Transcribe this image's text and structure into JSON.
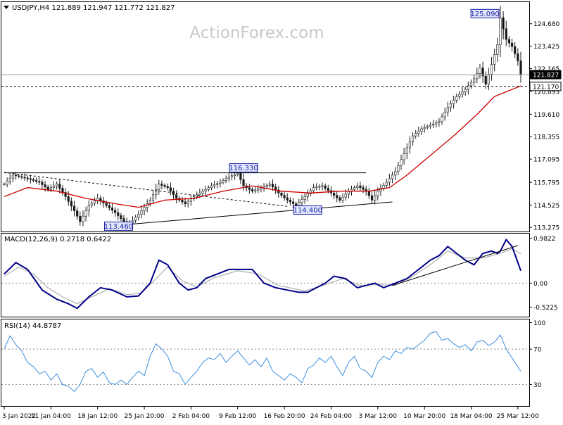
{
  "colors": {
    "candle": "#1a1a1a",
    "ma": "#cc0000",
    "macd": "#00008b",
    "signal": "#b0b0b0",
    "rsi": "#3d8fe0",
    "price_tag_bg": "#000000",
    "price_tag_fg": "#ffffff",
    "label_box_border": "#1f1fa0",
    "label_box_bg": "#dfe8ff",
    "watermark": "#c8c8c8"
  },
  "watermark": "ActionForex.com",
  "chart_data": [
    {
      "type": "candlestick",
      "title": "USDJPY,H4  121.889 121.947 121.772 121.827",
      "ylim": [
        113.2,
        125.3
      ],
      "y_ticks": [
        "124.680",
        "123.425",
        "122.165",
        "120.895",
        "119.610",
        "118.355",
        "117.095",
        "115.795",
        "114.525",
        "113.275"
      ],
      "y_tick_values": [
        124.68,
        123.425,
        122.165,
        120.895,
        119.61,
        118.355,
        117.095,
        115.795,
        114.525,
        113.275
      ],
      "last_price": "121.827",
      "last_price_value": 121.827,
      "dashed_level": "121.170",
      "dashed_level_value": 121.17,
      "annotations": [
        {
          "text": "125.090",
          "value": 125.09
        },
        {
          "text": "116.330",
          "value": 116.33
        },
        {
          "text": "114.400",
          "value": 114.4
        },
        {
          "text": "113.460",
          "value": 113.46
        }
      ],
      "price_path": [
        [
          0,
          115.7
        ],
        [
          3,
          116.2
        ],
        [
          8,
          116.0
        ],
        [
          12,
          115.8
        ],
        [
          15,
          115.4
        ],
        [
          18,
          115.7
        ],
        [
          21,
          115.0
        ],
        [
          24,
          114.2
        ],
        [
          26,
          113.6
        ],
        [
          29,
          114.5
        ],
        [
          32,
          114.9
        ],
        [
          35,
          114.5
        ],
        [
          38,
          114.1
        ],
        [
          41,
          113.6
        ],
        [
          43,
          113.5
        ],
        [
          46,
          114.0
        ],
        [
          50,
          114.8
        ],
        [
          53,
          115.7
        ],
        [
          56,
          115.5
        ],
        [
          59,
          114.9
        ],
        [
          62,
          114.6
        ],
        [
          65,
          115.0
        ],
        [
          68,
          115.3
        ],
        [
          71,
          115.6
        ],
        [
          74,
          115.8
        ],
        [
          77,
          116.1
        ],
        [
          80,
          116.3
        ],
        [
          82,
          115.6
        ],
        [
          85,
          115.3
        ],
        [
          88,
          115.5
        ],
        [
          91,
          115.7
        ],
        [
          94,
          115.2
        ],
        [
          97,
          114.8
        ],
        [
          100,
          114.5
        ],
        [
          103,
          115.0
        ],
        [
          106,
          115.5
        ],
        [
          109,
          115.6
        ],
        [
          112,
          115.2
        ],
        [
          115,
          114.8
        ],
        [
          118,
          115.3
        ],
        [
          121,
          115.6
        ],
        [
          124,
          115.3
        ],
        [
          126,
          114.8
        ],
        [
          128,
          115.3
        ],
        [
          131,
          115.8
        ],
        [
          134,
          116.4
        ],
        [
          137,
          117.4
        ],
        [
          140,
          118.4
        ],
        [
          143,
          118.8
        ],
        [
          146,
          119.0
        ],
        [
          149,
          119.2
        ],
        [
          152,
          120.0
        ],
        [
          155,
          120.6
        ],
        [
          158,
          121.0
        ],
        [
          161,
          121.6
        ],
        [
          163,
          122.2
        ],
        [
          165,
          121.3
        ],
        [
          167,
          122.4
        ],
        [
          169,
          123.5
        ],
        [
          170,
          125.0
        ],
        [
          172,
          123.8
        ],
        [
          174,
          123.4
        ],
        [
          176,
          122.6
        ],
        [
          177,
          121.827
        ]
      ],
      "ma_path": [
        [
          0,
          115.0
        ],
        [
          8,
          115.5
        ],
        [
          18,
          115.3
        ],
        [
          28,
          114.9
        ],
        [
          38,
          114.6
        ],
        [
          46,
          114.4
        ],
        [
          55,
          114.8
        ],
        [
          65,
          114.9
        ],
        [
          75,
          115.3
        ],
        [
          85,
          115.6
        ],
        [
          95,
          115.3
        ],
        [
          105,
          115.2
        ],
        [
          115,
          115.3
        ],
        [
          125,
          115.3
        ],
        [
          132,
          115.5
        ],
        [
          138,
          116.2
        ],
        [
          146,
          117.3
        ],
        [
          154,
          118.4
        ],
        [
          162,
          119.6
        ],
        [
          168,
          120.6
        ],
        [
          174,
          121.0
        ],
        [
          177,
          121.2
        ]
      ],
      "trendlines": [
        {
          "from": [
            0,
            116.35
          ],
          "to": [
            97,
            114.45
          ],
          "style": "dashed"
        },
        {
          "from": [
            44,
            113.46
          ],
          "to": [
            133,
            114.7
          ],
          "style": "solid"
        },
        {
          "from": [
            0,
            116.33
          ],
          "to": [
            124,
            116.33
          ],
          "style": "solid"
        },
        {
          "from": [
            171,
            125.09
          ],
          "to": [
            171,
            123.8
          ],
          "style": "solid"
        }
      ]
    },
    {
      "type": "line",
      "title": "MACD(12,26,9) 0.2718 0.6422",
      "ylim": [
        -0.7,
        1.05
      ],
      "y_ticks": [
        "0.9822",
        "0.00",
        "-0.5225"
      ],
      "y_tick_values": [
        0.9822,
        0.0,
        -0.5225
      ],
      "dotted_level_values": [
        0.0
      ],
      "series": [
        {
          "points": [
            [
              0,
              0.2
            ],
            [
              4,
              0.45
            ],
            [
              8,
              0.3
            ],
            [
              13,
              -0.15
            ],
            [
              18,
              -0.35
            ],
            [
              22,
              -0.45
            ],
            [
              25,
              -0.55
            ],
            [
              29,
              -0.3
            ],
            [
              33,
              -0.1
            ],
            [
              37,
              -0.15
            ],
            [
              42,
              -0.3
            ],
            [
              46,
              -0.28
            ],
            [
              50,
              0.0
            ],
            [
              53,
              0.5
            ],
            [
              56,
              0.4
            ],
            [
              60,
              0.0
            ],
            [
              63,
              -0.15
            ],
            [
              66,
              -0.1
            ],
            [
              69,
              0.1
            ],
            [
              73,
              0.2
            ],
            [
              77,
              0.3
            ],
            [
              81,
              0.3
            ],
            [
              85,
              0.3
            ],
            [
              89,
              0.0
            ],
            [
              93,
              -0.1
            ],
            [
              97,
              -0.15
            ],
            [
              101,
              -0.2
            ],
            [
              104,
              -0.2
            ],
            [
              107,
              -0.1
            ],
            [
              110,
              0.0
            ],
            [
              113,
              0.15
            ],
            [
              117,
              0.1
            ],
            [
              121,
              -0.1
            ],
            [
              124,
              -0.05
            ],
            [
              127,
              0.0
            ],
            [
              130,
              -0.1
            ],
            [
              134,
              0.0
            ],
            [
              138,
              0.1
            ],
            [
              142,
              0.3
            ],
            [
              146,
              0.5
            ],
            [
              149,
              0.6
            ],
            [
              152,
              0.8
            ],
            [
              155,
              0.65
            ],
            [
              158,
              0.5
            ],
            [
              161,
              0.4
            ],
            [
              164,
              0.65
            ],
            [
              167,
              0.7
            ],
            [
              169,
              0.65
            ],
            [
              170,
              0.7
            ],
            [
              172,
              0.95
            ],
            [
              174,
              0.8
            ],
            [
              176,
              0.45
            ],
            [
              177,
              0.27
            ]
          ]
        },
        {
          "points": [
            [
              0,
              0.15
            ],
            [
              5,
              0.35
            ],
            [
              10,
              0.2
            ],
            [
              15,
              -0.1
            ],
            [
              20,
              -0.3
            ],
            [
              25,
              -0.45
            ],
            [
              30,
              -0.3
            ],
            [
              36,
              -0.12
            ],
            [
              42,
              -0.25
            ],
            [
              47,
              -0.22
            ],
            [
              52,
              0.1
            ],
            [
              56,
              0.35
            ],
            [
              61,
              0.05
            ],
            [
              66,
              -0.08
            ],
            [
              72,
              0.12
            ],
            [
              80,
              0.27
            ],
            [
              87,
              0.2
            ],
            [
              94,
              -0.05
            ],
            [
              103,
              -0.17
            ],
            [
              110,
              -0.03
            ],
            [
              116,
              0.1
            ],
            [
              122,
              -0.05
            ],
            [
              128,
              -0.03
            ],
            [
              134,
              -0.05
            ],
            [
              140,
              0.15
            ],
            [
              146,
              0.4
            ],
            [
              152,
              0.7
            ],
            [
              158,
              0.55
            ],
            [
              164,
              0.55
            ],
            [
              170,
              0.65
            ],
            [
              174,
              0.75
            ],
            [
              177,
              0.64
            ]
          ]
        }
      ],
      "trendlines": [
        {
          "from": [
            133,
            -0.05
          ],
          "to": [
            176,
            0.82
          ],
          "style": "solid"
        }
      ]
    },
    {
      "type": "line",
      "title": "RSI(14) 44.8787",
      "ylim": [
        8,
        102
      ],
      "y_ticks": [
        "100",
        "70",
        "30"
      ],
      "y_tick_values": [
        100,
        70,
        30
      ],
      "dotted_level_values": [
        70,
        30
      ],
      "series": [
        {
          "points": [
            [
              0,
              70
            ],
            [
              2,
              85
            ],
            [
              4,
              75
            ],
            [
              6,
              68
            ],
            [
              8,
              55
            ],
            [
              10,
              50
            ],
            [
              12,
              42
            ],
            [
              14,
              45
            ],
            [
              16,
              35
            ],
            [
              18,
              42
            ],
            [
              20,
              30
            ],
            [
              22,
              28
            ],
            [
              24,
              22
            ],
            [
              26,
              30
            ],
            [
              28,
              45
            ],
            [
              30,
              48
            ],
            [
              32,
              38
            ],
            [
              34,
              44
            ],
            [
              36,
              32
            ],
            [
              38,
              30
            ],
            [
              40,
              35
            ],
            [
              42,
              30
            ],
            [
              44,
              38
            ],
            [
              46,
              45
            ],
            [
              48,
              40
            ],
            [
              50,
              62
            ],
            [
              52,
              76
            ],
            [
              54,
              70
            ],
            [
              56,
              62
            ],
            [
              58,
              45
            ],
            [
              60,
              42
            ],
            [
              62,
              30
            ],
            [
              64,
              38
            ],
            [
              66,
              45
            ],
            [
              68,
              55
            ],
            [
              70,
              60
            ],
            [
              72,
              58
            ],
            [
              74,
              65
            ],
            [
              76,
              55
            ],
            [
              78,
              62
            ],
            [
              80,
              68
            ],
            [
              82,
              60
            ],
            [
              84,
              52
            ],
            [
              86,
              58
            ],
            [
              88,
              50
            ],
            [
              90,
              60
            ],
            [
              92,
              45
            ],
            [
              94,
              40
            ],
            [
              96,
              35
            ],
            [
              98,
              42
            ],
            [
              100,
              38
            ],
            [
              102,
              32
            ],
            [
              104,
              48
            ],
            [
              106,
              52
            ],
            [
              108,
              60
            ],
            [
              110,
              55
            ],
            [
              112,
              62
            ],
            [
              114,
              50
            ],
            [
              116,
              40
            ],
            [
              118,
              55
            ],
            [
              120,
              62
            ],
            [
              122,
              48
            ],
            [
              124,
              45
            ],
            [
              126,
              38
            ],
            [
              128,
              55
            ],
            [
              130,
              62
            ],
            [
              132,
              58
            ],
            [
              134,
              68
            ],
            [
              136,
              65
            ],
            [
              138,
              72
            ],
            [
              140,
              70
            ],
            [
              142,
              75
            ],
            [
              144,
              80
            ],
            [
              146,
              88
            ],
            [
              148,
              90
            ],
            [
              150,
              80
            ],
            [
              152,
              82
            ],
            [
              154,
              76
            ],
            [
              156,
              72
            ],
            [
              158,
              75
            ],
            [
              160,
              68
            ],
            [
              162,
              78
            ],
            [
              164,
              80
            ],
            [
              166,
              74
            ],
            [
              168,
              78
            ],
            [
              170,
              86
            ],
            [
              172,
              70
            ],
            [
              174,
              60
            ],
            [
              176,
              50
            ],
            [
              177,
              45
            ]
          ]
        }
      ]
    }
  ],
  "x_axis": {
    "labels": [
      "3 Jan 2022",
      "11 Jan 04:00",
      "18 Jan 12:00",
      "25 Jan 20:00",
      "2 Feb 04:00",
      "9 Feb 12:00",
      "16 Feb 20:00",
      "24 Feb 04:00",
      "3 Mar 12:00",
      "10 Mar 20:00",
      "18 Mar 04:00",
      "25 Mar 12:00"
    ],
    "label_bars": [
      0,
      16,
      32,
      48,
      64,
      80,
      96,
      112,
      128,
      144,
      160,
      176
    ],
    "range": [
      0,
      177
    ]
  }
}
